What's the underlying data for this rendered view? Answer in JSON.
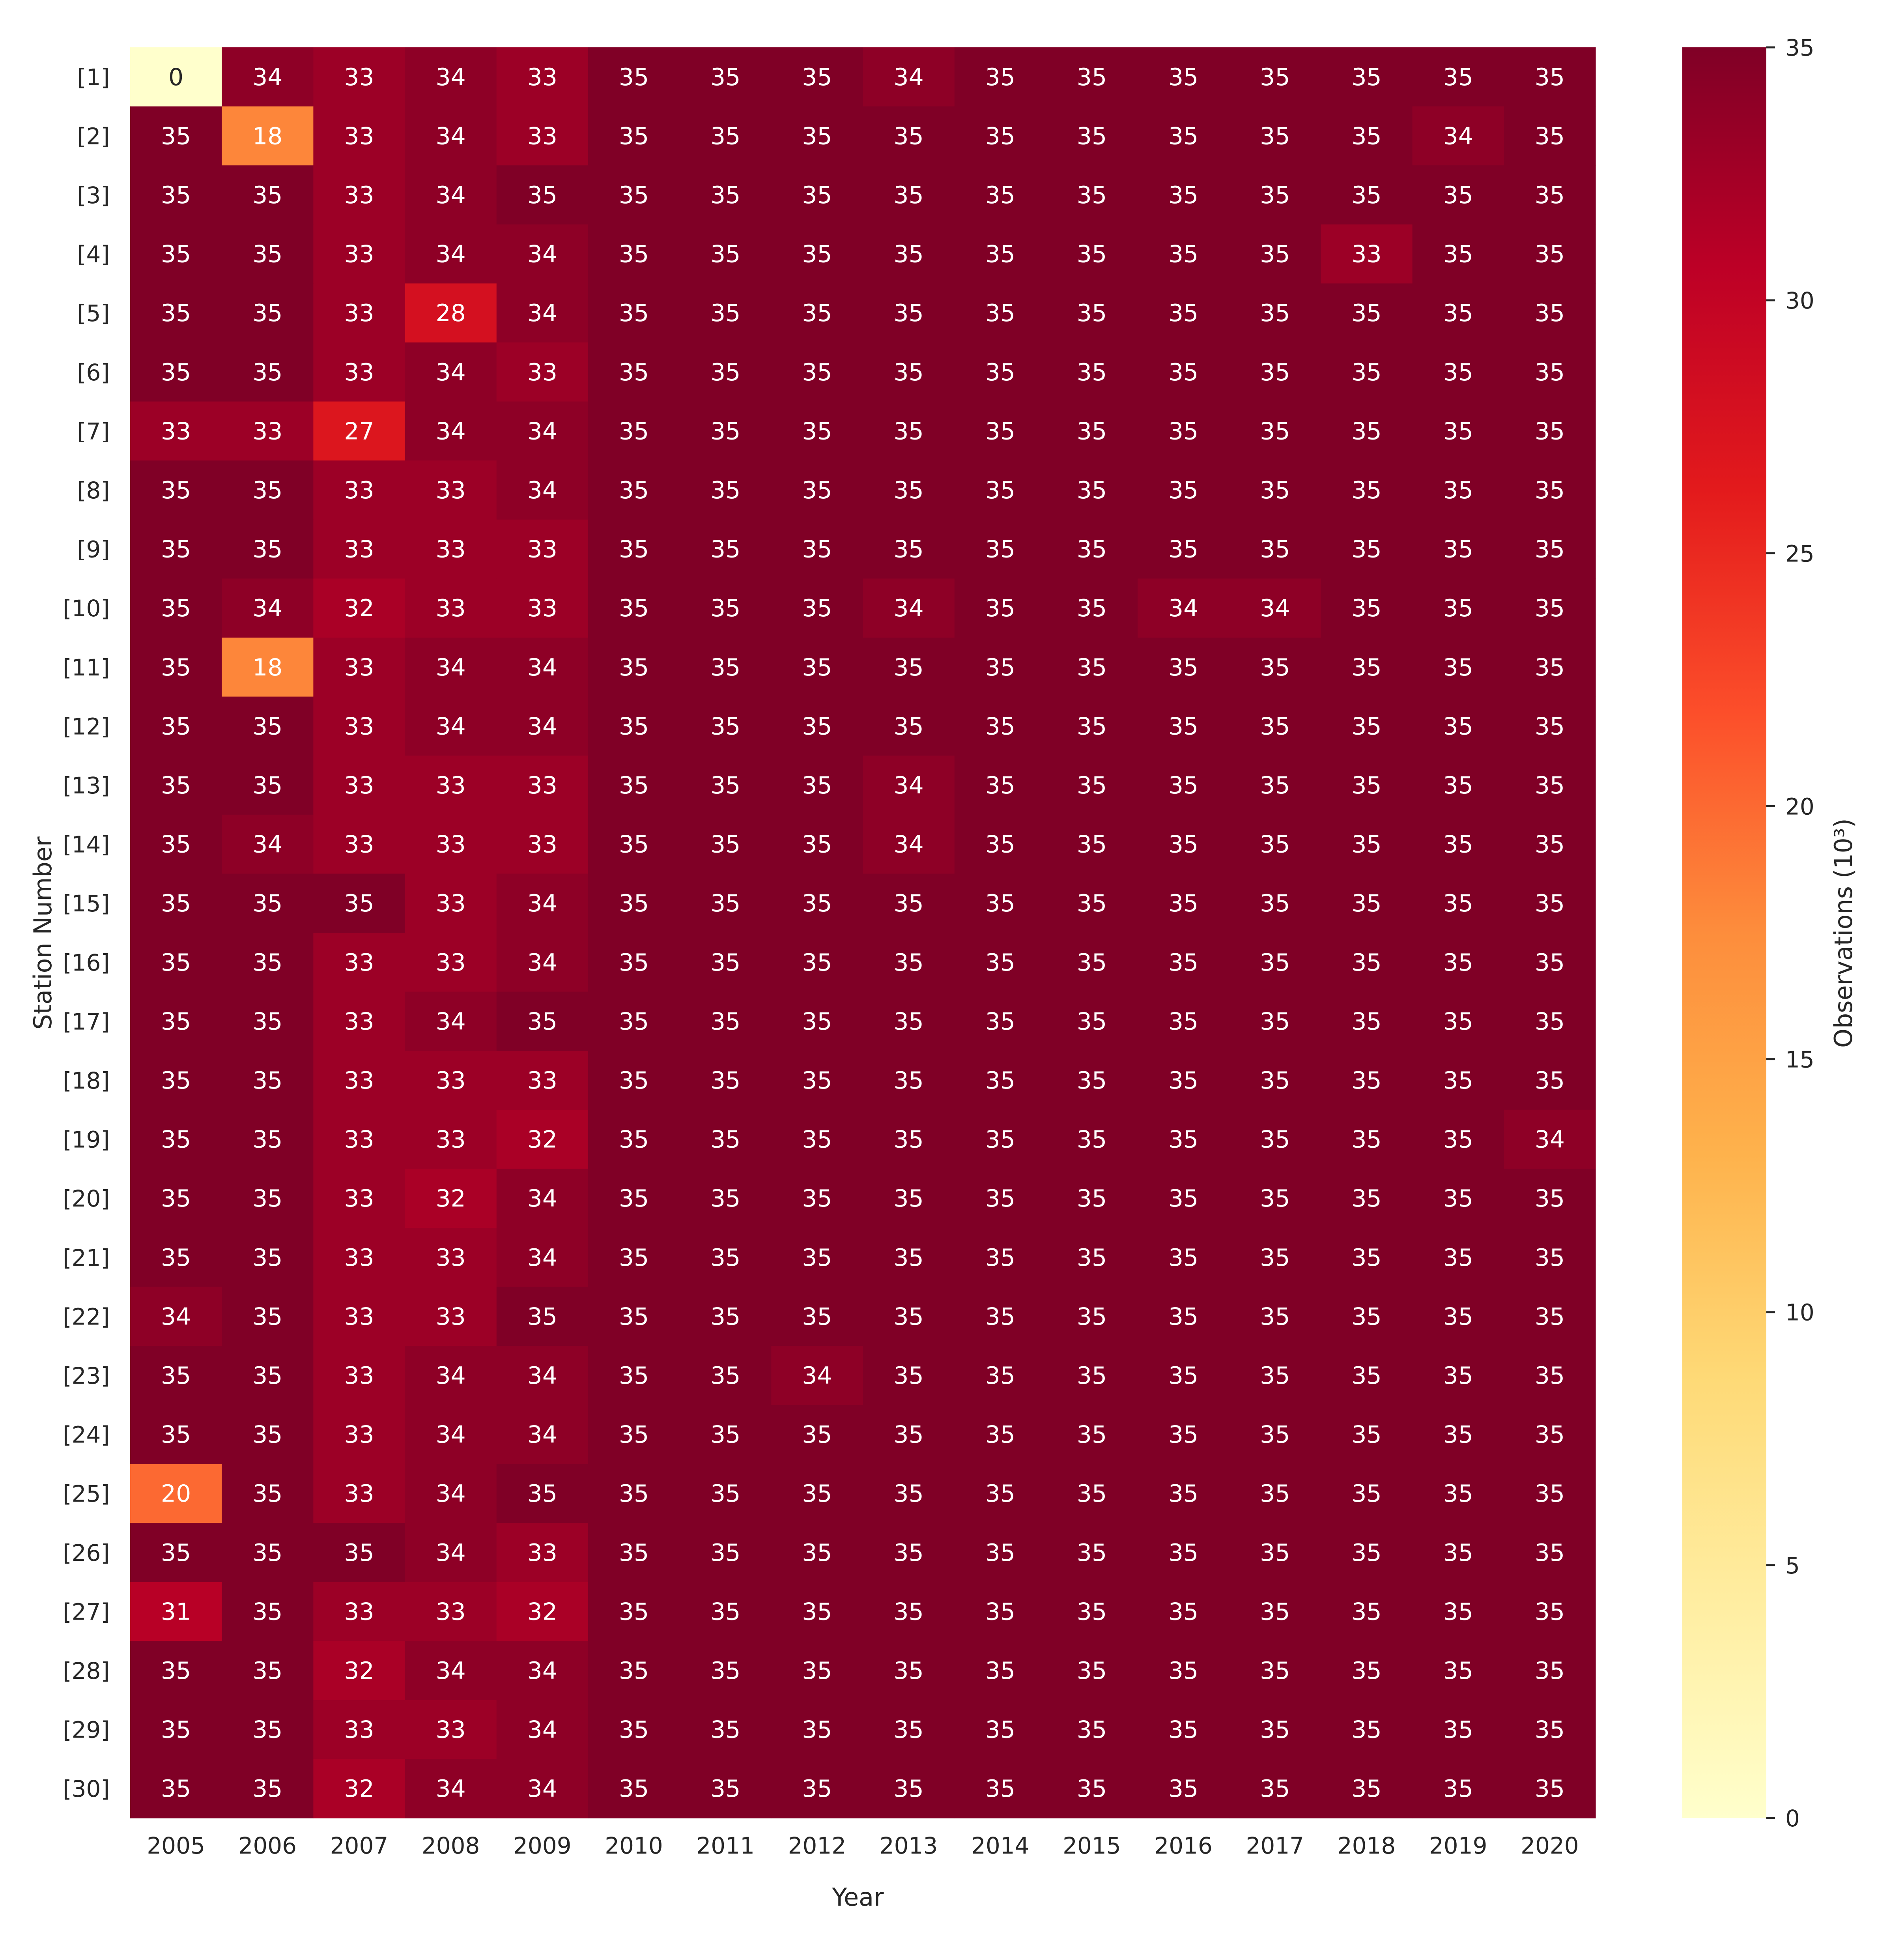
{
  "chart_data": {
    "type": "heatmap",
    "xlabel": "Year",
    "ylabel": "Station Number",
    "colorbar": {
      "label": "Observations (10³)",
      "ticks": [
        0,
        5,
        10,
        15,
        20,
        25,
        30,
        35
      ],
      "range": [
        0,
        35
      ],
      "colormap": "YlOrRd",
      "colors": [
        "#ffffcc",
        "#ffeda0",
        "#fed976",
        "#feb24c",
        "#fd8d3c",
        "#fc4e2a",
        "#e31a1c",
        "#bd0026",
        "#800026"
      ]
    },
    "x": [
      "2005",
      "2006",
      "2007",
      "2008",
      "2009",
      "2010",
      "2011",
      "2012",
      "2013",
      "2014",
      "2015",
      "2016",
      "2017",
      "2018",
      "2019",
      "2020"
    ],
    "y": [
      "[1]",
      "[2]",
      "[3]",
      "[4]",
      "[5]",
      "[6]",
      "[7]",
      "[8]",
      "[9]",
      "[10]",
      "[11]",
      "[12]",
      "[13]",
      "[14]",
      "[15]",
      "[16]",
      "[17]",
      "[18]",
      "[19]",
      "[20]",
      "[21]",
      "[22]",
      "[23]",
      "[24]",
      "[25]",
      "[26]",
      "[27]",
      "[28]",
      "[29]",
      "[30]"
    ],
    "values": [
      [
        0,
        34,
        33,
        34,
        33,
        35,
        35,
        35,
        34,
        35,
        35,
        35,
        35,
        35,
        35,
        35
      ],
      [
        35,
        18,
        33,
        34,
        33,
        35,
        35,
        35,
        35,
        35,
        35,
        35,
        35,
        35,
        34,
        35
      ],
      [
        35,
        35,
        33,
        34,
        35,
        35,
        35,
        35,
        35,
        35,
        35,
        35,
        35,
        35,
        35,
        35
      ],
      [
        35,
        35,
        33,
        34,
        34,
        35,
        35,
        35,
        35,
        35,
        35,
        35,
        35,
        33,
        35,
        35
      ],
      [
        35,
        35,
        33,
        28,
        34,
        35,
        35,
        35,
        35,
        35,
        35,
        35,
        35,
        35,
        35,
        35
      ],
      [
        35,
        35,
        33,
        34,
        33,
        35,
        35,
        35,
        35,
        35,
        35,
        35,
        35,
        35,
        35,
        35
      ],
      [
        33,
        33,
        27,
        34,
        34,
        35,
        35,
        35,
        35,
        35,
        35,
        35,
        35,
        35,
        35,
        35
      ],
      [
        35,
        35,
        33,
        33,
        34,
        35,
        35,
        35,
        35,
        35,
        35,
        35,
        35,
        35,
        35,
        35
      ],
      [
        35,
        35,
        33,
        33,
        33,
        35,
        35,
        35,
        35,
        35,
        35,
        35,
        35,
        35,
        35,
        35
      ],
      [
        35,
        34,
        32,
        33,
        33,
        35,
        35,
        35,
        34,
        35,
        35,
        34,
        34,
        35,
        35,
        35
      ],
      [
        35,
        18,
        33,
        34,
        34,
        35,
        35,
        35,
        35,
        35,
        35,
        35,
        35,
        35,
        35,
        35
      ],
      [
        35,
        35,
        33,
        34,
        34,
        35,
        35,
        35,
        35,
        35,
        35,
        35,
        35,
        35,
        35,
        35
      ],
      [
        35,
        35,
        33,
        33,
        33,
        35,
        35,
        35,
        34,
        35,
        35,
        35,
        35,
        35,
        35,
        35
      ],
      [
        35,
        34,
        33,
        33,
        33,
        35,
        35,
        35,
        34,
        35,
        35,
        35,
        35,
        35,
        35,
        35
      ],
      [
        35,
        35,
        35,
        33,
        34,
        35,
        35,
        35,
        35,
        35,
        35,
        35,
        35,
        35,
        35,
        35
      ],
      [
        35,
        35,
        33,
        33,
        34,
        35,
        35,
        35,
        35,
        35,
        35,
        35,
        35,
        35,
        35,
        35
      ],
      [
        35,
        35,
        33,
        34,
        35,
        35,
        35,
        35,
        35,
        35,
        35,
        35,
        35,
        35,
        35,
        35
      ],
      [
        35,
        35,
        33,
        33,
        33,
        35,
        35,
        35,
        35,
        35,
        35,
        35,
        35,
        35,
        35,
        35
      ],
      [
        35,
        35,
        33,
        33,
        32,
        35,
        35,
        35,
        35,
        35,
        35,
        35,
        35,
        35,
        35,
        34
      ],
      [
        35,
        35,
        33,
        32,
        34,
        35,
        35,
        35,
        35,
        35,
        35,
        35,
        35,
        35,
        35,
        35
      ],
      [
        35,
        35,
        33,
        33,
        34,
        35,
        35,
        35,
        35,
        35,
        35,
        35,
        35,
        35,
        35,
        35
      ],
      [
        34,
        35,
        33,
        33,
        35,
        35,
        35,
        35,
        35,
        35,
        35,
        35,
        35,
        35,
        35,
        35
      ],
      [
        35,
        35,
        33,
        34,
        34,
        35,
        35,
        34,
        35,
        35,
        35,
        35,
        35,
        35,
        35,
        35
      ],
      [
        35,
        35,
        33,
        34,
        34,
        35,
        35,
        35,
        35,
        35,
        35,
        35,
        35,
        35,
        35,
        35
      ],
      [
        20,
        35,
        33,
        34,
        35,
        35,
        35,
        35,
        35,
        35,
        35,
        35,
        35,
        35,
        35,
        35
      ],
      [
        35,
        35,
        35,
        34,
        33,
        35,
        35,
        35,
        35,
        35,
        35,
        35,
        35,
        35,
        35,
        35
      ],
      [
        31,
        35,
        33,
        33,
        32,
        35,
        35,
        35,
        35,
        35,
        35,
        35,
        35,
        35,
        35,
        35
      ],
      [
        35,
        35,
        32,
        34,
        34,
        35,
        35,
        35,
        35,
        35,
        35,
        35,
        35,
        35,
        35,
        35
      ],
      [
        35,
        35,
        33,
        33,
        34,
        35,
        35,
        35,
        35,
        35,
        35,
        35,
        35,
        35,
        35,
        35
      ],
      [
        35,
        35,
        32,
        34,
        34,
        35,
        35,
        35,
        35,
        35,
        35,
        35,
        35,
        35,
        35,
        35
      ]
    ]
  }
}
